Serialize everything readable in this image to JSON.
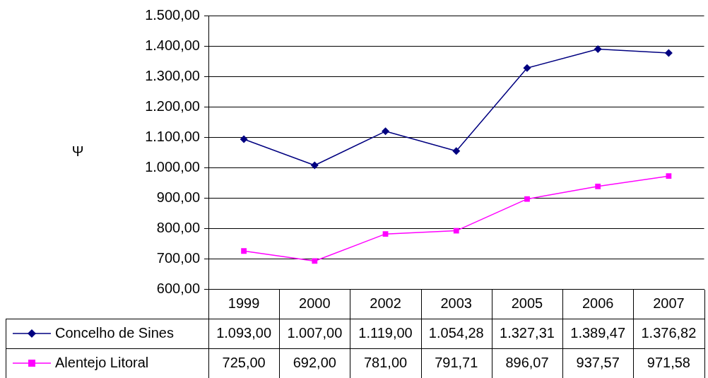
{
  "chart_data": {
    "type": "line",
    "ylabel": "Ψ",
    "categories": [
      "1999",
      "2000",
      "2002",
      "2003",
      "2005",
      "2006",
      "2007"
    ],
    "series": [
      {
        "name": "Concelho de Sines",
        "color": "#000080",
        "marker": "diamond",
        "values": [
          1093.0,
          1007.0,
          1119.0,
          1054.28,
          1327.31,
          1389.47,
          1376.82
        ],
        "value_labels": [
          "1.093,00",
          "1.007,00",
          "1.119,00",
          "1.054,28",
          "1.327,31",
          "1.389,47",
          "1.376,82"
        ]
      },
      {
        "name": "Alentejo Litoral",
        "color": "#ff00ff",
        "marker": "square",
        "values": [
          725.0,
          692.0,
          781.0,
          791.71,
          896.07,
          937.57,
          971.58
        ],
        "value_labels": [
          "725,00",
          "692,00",
          "781,00",
          "791,71",
          "896,07",
          "937,57",
          "971,58"
        ]
      }
    ],
    "ylim": [
      600,
      1500
    ],
    "yticks": [
      {
        "value": 600,
        "label": "600,00"
      },
      {
        "value": 700,
        "label": "700,00"
      },
      {
        "value": 800,
        "label": "800,00"
      },
      {
        "value": 900,
        "label": "900,00"
      },
      {
        "value": 1000,
        "label": "1.000,00"
      },
      {
        "value": 1100,
        "label": "1.100,00"
      },
      {
        "value": 1200,
        "label": "1.200,00"
      },
      {
        "value": 1300,
        "label": "1.300,00"
      },
      {
        "value": 1400,
        "label": "1.400,00"
      },
      {
        "value": 1500,
        "label": "1.500,00"
      }
    ],
    "grid": "y",
    "legend": "bottom",
    "line_style": "solid"
  }
}
